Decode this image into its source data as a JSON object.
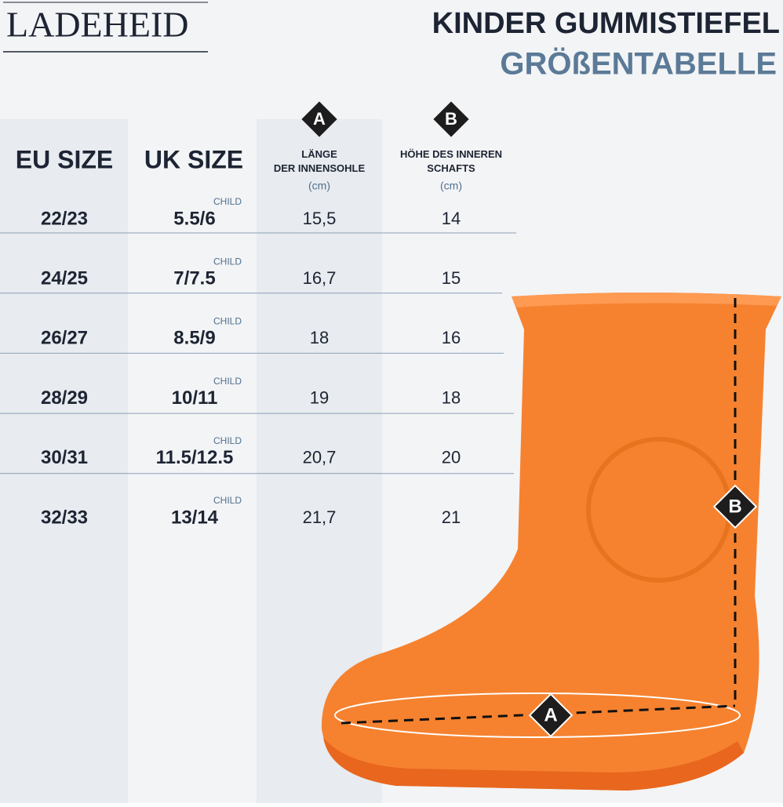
{
  "brand": "LADEHEID",
  "title": {
    "line1": "KINDER GUMMISTIEFEL",
    "line2": "GRÖßENTABELLE"
  },
  "markers": {
    "a": "A",
    "b": "B"
  },
  "table": {
    "headers": {
      "eu": "EU SIZE",
      "uk": "UK SIZE",
      "a": "LÄNGE\nDER INNENSOHLE",
      "a_unit": "(cm)",
      "b": "HÖHE DES INNEREN\nSCHAFTS",
      "b_unit": "(cm)"
    },
    "rows": [
      {
        "uk_note": "CHILD",
        "eu": "22/23",
        "uk": "5.5/6",
        "a": "15,5",
        "b": "14"
      },
      {
        "uk_note": "CHILD",
        "eu": "24/25",
        "uk": "7/7.5",
        "a": "16,7",
        "b": "15"
      },
      {
        "uk_note": "CHILD",
        "eu": "26/27",
        "uk": "8.5/9",
        "a": "18",
        "b": "16"
      },
      {
        "uk_note": "CHILD",
        "eu": "28/29",
        "uk": "10/11",
        "a": "19",
        "b": "18"
      },
      {
        "uk_note": "CHILD",
        "eu": "30/31",
        "uk": "11.5/12.5",
        "a": "20,7",
        "b": "20"
      },
      {
        "uk_note": "CHILD",
        "eu": "32/33",
        "uk": "13/14",
        "a": "21,7",
        "b": "21"
      }
    ]
  }
}
